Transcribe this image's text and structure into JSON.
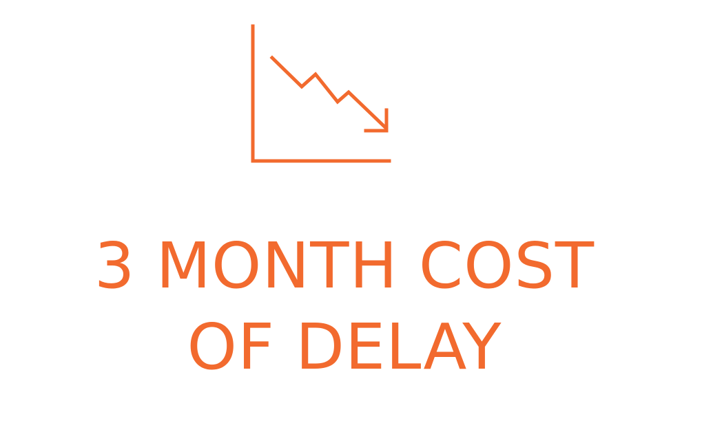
{
  "colors": {
    "accent": "#f26a2e",
    "background": "#ffffff"
  },
  "icon": {
    "name": "declining-chart-icon"
  },
  "title": {
    "line1": "3 MONTH COST",
    "line2": "OF DELAY"
  }
}
